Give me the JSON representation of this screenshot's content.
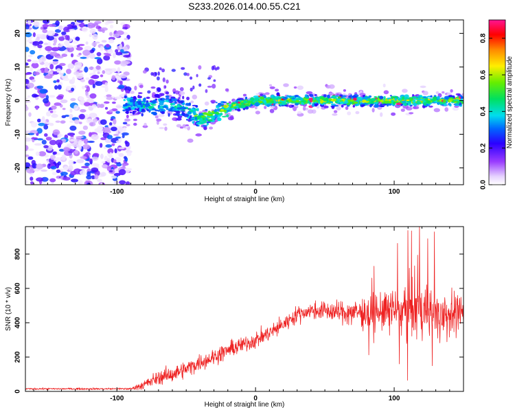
{
  "title": "S233.2026.014.00.55.C21",
  "chart_data": [
    {
      "type": "heatmap",
      "xlabel": "Height of straight line (km)",
      "ylabel": "Frequency (Hz)",
      "xlim": [
        -166,
        150
      ],
      "ylim": [
        -25,
        24
      ],
      "xticks": [
        -100,
        0,
        100
      ],
      "yticks": [
        -20,
        -10,
        0,
        10,
        20
      ],
      "trace": {
        "x": [
          -95,
          -85,
          -75,
          -65,
          -55,
          -45,
          -38,
          -30,
          -20,
          -10,
          0,
          20,
          40,
          60,
          80,
          100,
          120,
          150
        ],
        "frequency": [
          -1,
          -1,
          -2,
          -1,
          -2,
          -4,
          -5,
          -4,
          -2,
          -1,
          0,
          0,
          0,
          0,
          0,
          0,
          0,
          0
        ]
      },
      "noise_region_x": [
        -166,
        -95
      ],
      "colorbar": {
        "label": "Normalized spectral amplitude",
        "range": [
          0.0,
          0.9
        ],
        "ticks": [
          "0.0",
          "0.2",
          "0.4",
          "0.6",
          "0.8"
        ]
      }
    },
    {
      "type": "line",
      "xlabel": "Height of straight line (km)",
      "ylabel": "SNR (10 * v/v)",
      "xlim": [
        -166,
        150
      ],
      "ylim": [
        0,
        960
      ],
      "xticks": [
        -100,
        0,
        100
      ],
      "yticks": [
        0,
        200,
        400,
        600,
        800
      ],
      "color": "#ee2222",
      "envelope": {
        "x": [
          -166,
          -90,
          -80,
          -70,
          -60,
          -50,
          -40,
          -30,
          -20,
          -10,
          0,
          10,
          20,
          30,
          40,
          50,
          60,
          70,
          80,
          90,
          100,
          110,
          120,
          130,
          140,
          150
        ],
        "mean": [
          15,
          15,
          40,
          80,
          100,
          130,
          170,
          200,
          240,
          270,
          300,
          340,
          390,
          450,
          470,
          470,
          460,
          460,
          460,
          460,
          470,
          470,
          470,
          450,
          450,
          450
        ],
        "spread": [
          6,
          8,
          40,
          50,
          60,
          60,
          60,
          60,
          60,
          60,
          60,
          60,
          60,
          60,
          60,
          70,
          80,
          100,
          120,
          150,
          180,
          220,
          230,
          200,
          180,
          160
        ]
      }
    }
  ]
}
